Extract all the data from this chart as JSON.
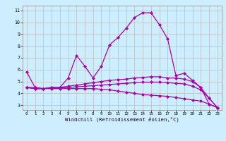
{
  "xlabel": "Windchill (Refroidissement éolien,°C)",
  "x": [
    0,
    1,
    2,
    3,
    4,
    5,
    6,
    7,
    8,
    9,
    10,
    11,
    12,
    13,
    14,
    15,
    16,
    17,
    18,
    19,
    20,
    21,
    22,
    23
  ],
  "line1": [
    5.8,
    4.5,
    4.4,
    4.5,
    4.5,
    5.3,
    7.2,
    6.3,
    5.3,
    6.3,
    8.1,
    8.7,
    9.5,
    10.4,
    10.8,
    10.8,
    9.8,
    8.6,
    5.5,
    5.7,
    5.1,
    4.5,
    3.1,
    2.8
  ],
  "line2": [
    4.5,
    4.5,
    4.4,
    4.5,
    4.5,
    4.6,
    4.7,
    4.8,
    4.9,
    5.0,
    5.1,
    5.15,
    5.2,
    5.3,
    5.35,
    5.4,
    5.4,
    5.3,
    5.3,
    5.2,
    5.0,
    4.5,
    3.6,
    2.8
  ],
  "line3": [
    4.5,
    4.4,
    4.4,
    4.4,
    4.4,
    4.4,
    4.4,
    4.4,
    4.4,
    4.35,
    4.3,
    4.2,
    4.1,
    4.0,
    3.9,
    3.85,
    3.8,
    3.75,
    3.65,
    3.55,
    3.45,
    3.35,
    3.1,
    2.8
  ],
  "line4": [
    4.5,
    4.4,
    4.4,
    4.45,
    4.45,
    4.5,
    4.55,
    4.6,
    4.65,
    4.7,
    4.75,
    4.8,
    4.85,
    4.9,
    4.95,
    4.95,
    4.95,
    4.9,
    4.85,
    4.8,
    4.6,
    4.3,
    3.6,
    2.8
  ],
  "line_color": "#aa00aa",
  "bg_color": "#cceeff",
  "grid_color": "#bbbbbb",
  "ylim": [
    2.6,
    11.4
  ],
  "xlim": [
    -0.5,
    23.5
  ],
  "yticks": [
    3,
    4,
    5,
    6,
    7,
    8,
    9,
    10,
    11
  ],
  "xticks": [
    0,
    1,
    2,
    3,
    4,
    5,
    6,
    7,
    8,
    9,
    10,
    11,
    12,
    13,
    14,
    15,
    16,
    17,
    18,
    19,
    20,
    21,
    22,
    23
  ],
  "marker": "D",
  "markersize": 2.0,
  "linewidth": 0.9
}
